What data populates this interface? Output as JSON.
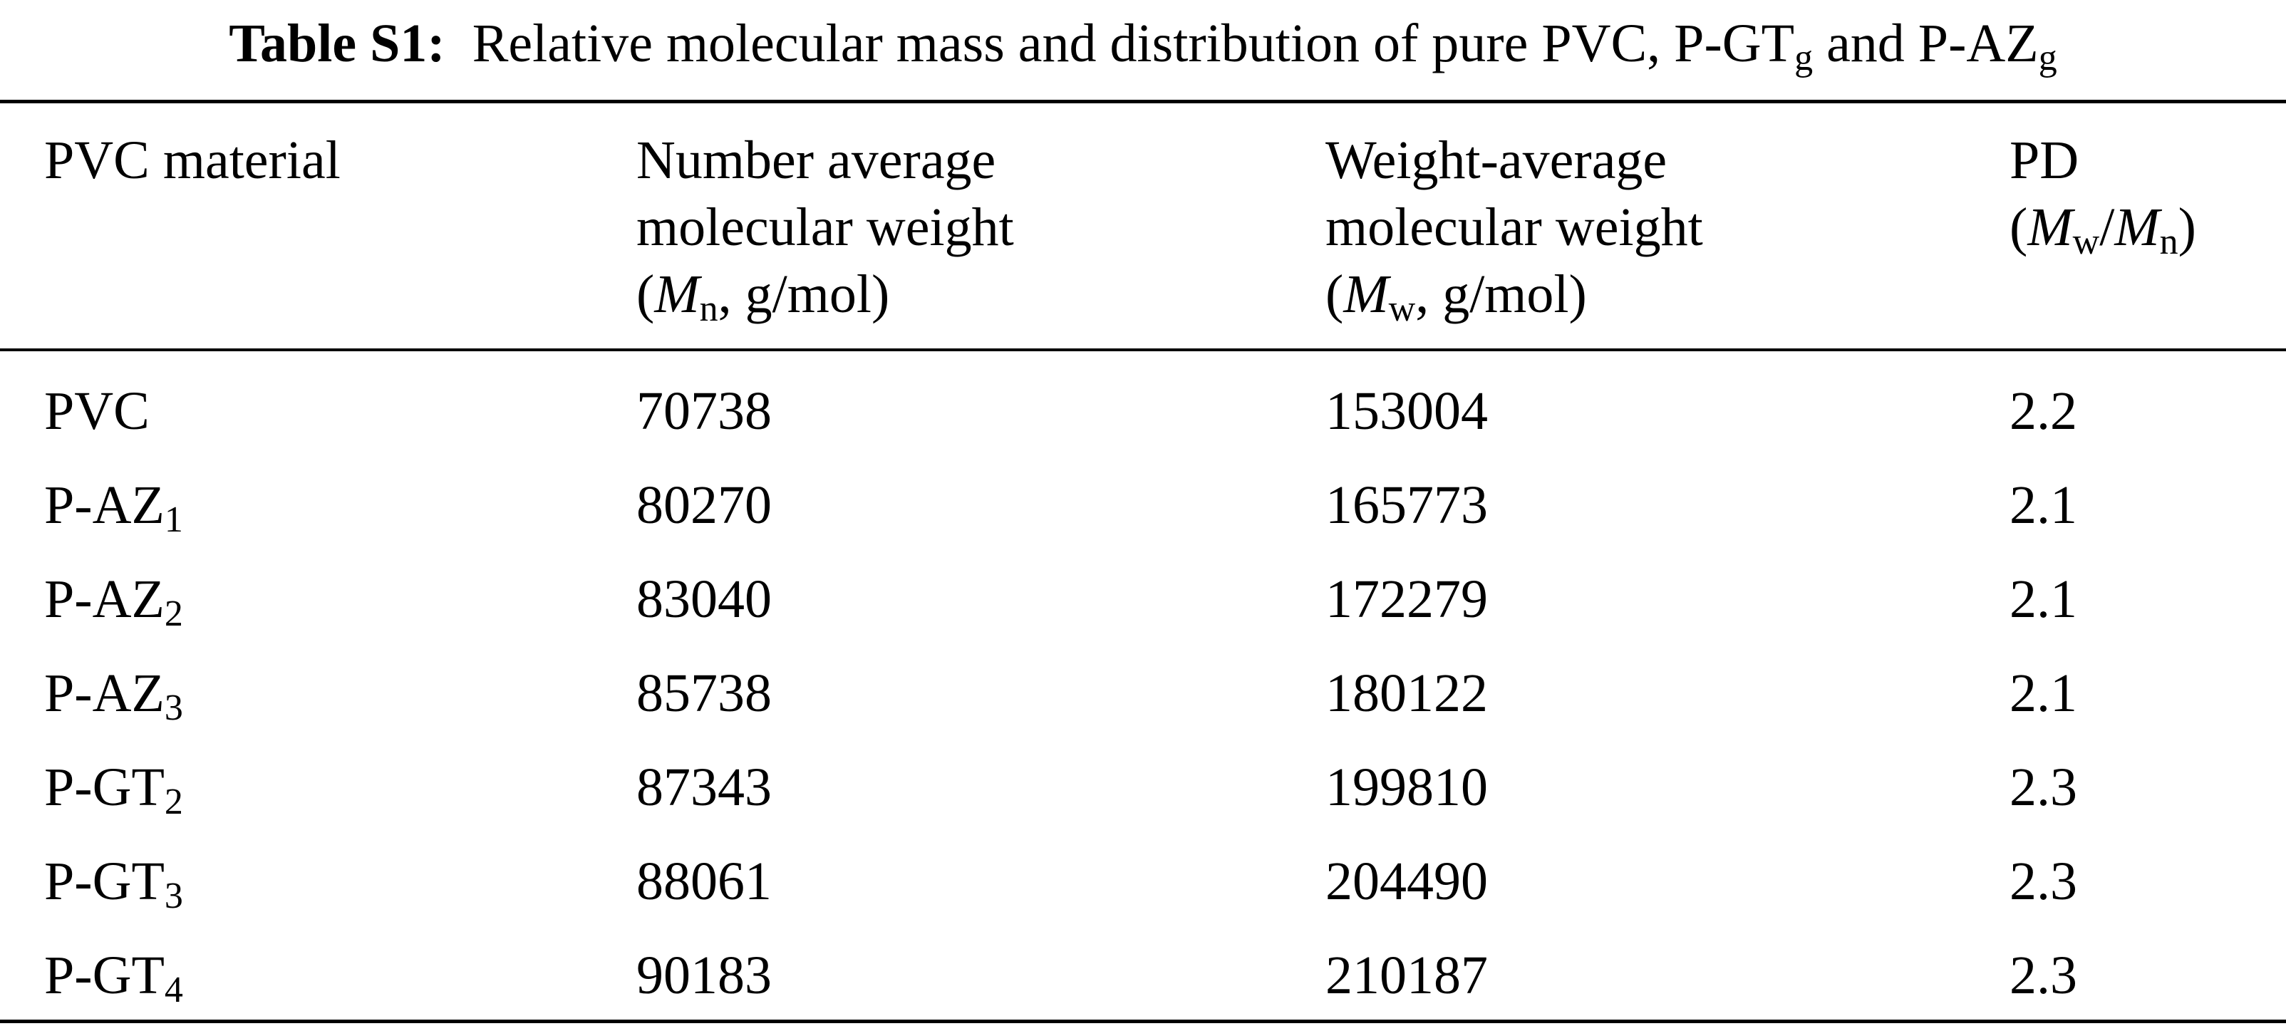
{
  "title": {
    "label": "Table S1:",
    "text": "Relative molecular mass and distribution of pure PVC, P-GT",
    "sub1": "g",
    "and": " and P-AZ",
    "sub2": "g"
  },
  "headers": {
    "material": "PVC material",
    "mn_line1": "Number average",
    "mn_line2": "molecular weight",
    "mn_open": "(",
    "mn_sym": "M",
    "mn_sub": "n",
    "mn_unit": ", g/mol)",
    "mw_line1": "Weight-average",
    "mw_line2": "molecular weight",
    "mw_open": "(",
    "mw_sym": "M",
    "mw_sub": "w",
    "mw_unit": ", g/mol)",
    "pd_line1": "PD",
    "pd_open": "(",
    "pd_sym1": "M",
    "pd_sub1": "w",
    "pd_slash": "/",
    "pd_sym2": "M",
    "pd_sub2": "n",
    "pd_close": ")"
  },
  "rows": [
    {
      "name": "PVC",
      "sub": "",
      "mn": "70738",
      "mw": "153004",
      "pd": "2.2"
    },
    {
      "name": "P-AZ",
      "sub": "1",
      "mn": "80270",
      "mw": "165773",
      "pd": "2.1"
    },
    {
      "name": "P-AZ",
      "sub": "2",
      "mn": "83040",
      "mw": "172279",
      "pd": "2.1"
    },
    {
      "name": "P-AZ",
      "sub": "3",
      "mn": "85738",
      "mw": "180122",
      "pd": "2.1"
    },
    {
      "name": "P-GT",
      "sub": "2",
      "mn": "87343",
      "mw": "199810",
      "pd": "2.3"
    },
    {
      "name": "P-GT",
      "sub": "3",
      "mn": "88061",
      "mw": "204490",
      "pd": "2.3"
    },
    {
      "name": "P-GT",
      "sub": "4",
      "mn": "90183",
      "mw": "210187",
      "pd": "2.3"
    }
  ]
}
